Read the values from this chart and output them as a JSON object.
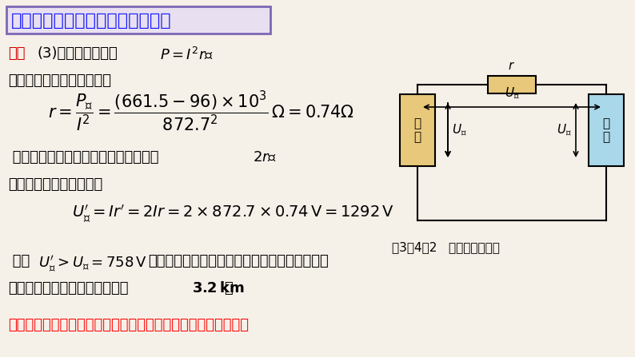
{
  "bg_color": "#f5f0e8",
  "title_text": "远距离输电中的电功率和电压损耗",
  "title_bg": "#e8e0f0",
  "title_border": "#7b68b5",
  "title_color": "#1a1aff",
  "title_fontsize": 16,
  "body_color": "#000000",
  "highlight_color": "#ff0000",
  "line1": "解：(3)由功率计算公式$P=I^2r$，",
  "line2": "可求得线路中的电阻大小为",
  "formula1": "$r = \\dfrac{P_{损}}{I^2} = \\dfrac{(661.5-96)\\times10^3}{872.7^2}\\,\\Omega = 0.74\\Omega$",
  "line3": " 输送距离增加一倍，则线路中电阻变为$2r$，",
  "line4": "此时线路上损耗的电压为",
  "formula2": "$U^{\\prime}_{损} = Ir^{\\prime} = 2Ir = 2 \\times 872.7 \\times 0.74\\,\\text{V} = 1292\\,\\text{V}$",
  "line5": " 由于$U^{\\prime}_{损} > U_{送} = 758\\,\\text{V}$，这意味着输送电压小于线路上的损耗电压，因",
  "line6": "此不可能将输送距离增加一倍到$\\mathbf{3.2\\,km}$。",
  "bottom_text": "低压直流输电系统在输电线路上存在很高的功率损耗和电压损耗",
  "caption": "图3－4－2   直流输电电路图"
}
